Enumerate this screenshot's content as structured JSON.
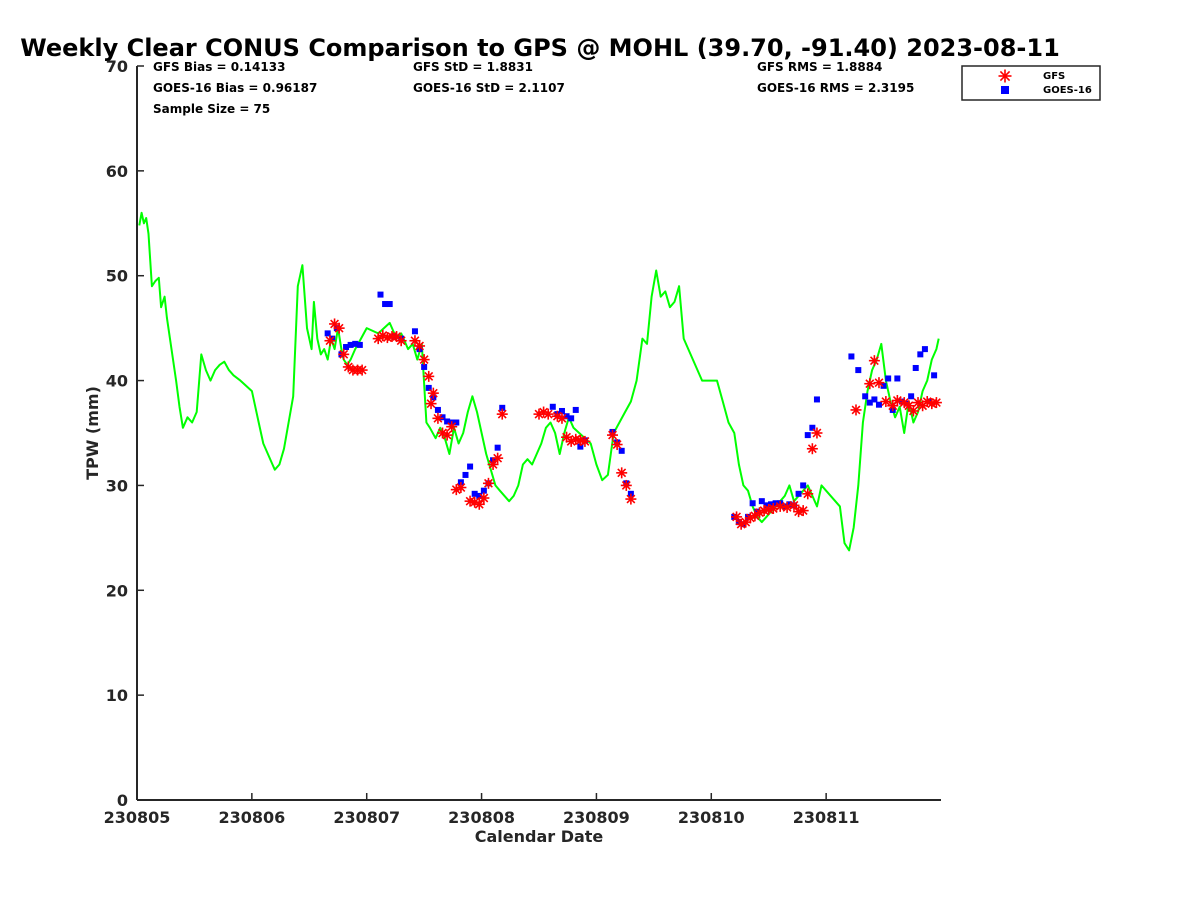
{
  "chart_data": {
    "type": "scatter",
    "title": "Weekly Clear CONUS Comparison to GPS @ MOHL (39.70, -91.40) 2023-08-11",
    "xlabel": "Calendar Date",
    "ylabel": "TPW (mm)",
    "xlim": [
      0.0,
      7.0
    ],
    "ylim": [
      0,
      70
    ],
    "x_tick_values": [
      0,
      1,
      2,
      3,
      4,
      5,
      6
    ],
    "x_tick_labels": [
      "230805",
      "230806",
      "230807",
      "230808",
      "230809",
      "230810",
      "230811"
    ],
    "y_ticks": [
      0,
      10,
      20,
      30,
      40,
      50,
      60,
      70
    ],
    "grid": false,
    "legend_position": "top-right, outside plot",
    "stats": {
      "gfs_bias": "GFS Bias = 0.14133",
      "goes_bias": "GOES-16 Bias = 0.96187",
      "sample_size": "Sample Size = 75",
      "gfs_std": "GFS StD = 1.8831",
      "goes_std": "GOES-16 StD = 2.1107",
      "gfs_rms": "GFS RMS = 1.8884",
      "goes_rms": "GOES-16 RMS = 2.3195"
    },
    "series": [
      {
        "name": "GPS",
        "type": "line",
        "color": "#00ff00",
        "in_legend": false,
        "x": [
          0.02,
          0.04,
          0.06,
          0.08,
          0.1,
          0.13,
          0.16,
          0.19,
          0.21,
          0.24,
          0.26,
          0.3,
          0.34,
          0.37,
          0.4,
          0.44,
          0.48,
          0.52,
          0.56,
          0.6,
          0.64,
          0.68,
          0.72,
          0.76,
          0.8,
          0.84,
          0.9,
          1.0,
          1.06,
          1.1,
          1.14,
          1.18,
          1.2,
          1.24,
          1.28,
          1.32,
          1.36,
          1.4,
          1.44,
          1.48,
          1.5,
          1.52,
          1.54,
          1.57,
          1.6,
          1.63,
          1.66,
          1.69,
          1.72,
          1.75,
          1.78,
          1.8,
          1.83,
          1.86,
          1.9,
          1.95,
          2.0,
          2.1,
          2.2,
          2.26,
          2.3,
          2.36,
          2.4,
          2.44,
          2.48,
          2.52,
          2.55,
          2.6,
          2.64,
          2.68,
          2.72,
          2.76,
          2.8,
          2.84,
          2.88,
          2.92,
          2.96,
          3.0,
          3.04,
          3.08,
          3.12,
          3.16,
          3.2,
          3.24,
          3.28,
          3.32,
          3.36,
          3.4,
          3.44,
          3.48,
          3.52,
          3.56,
          3.6,
          3.64,
          3.68,
          3.72,
          3.76,
          3.8,
          3.85,
          3.9,
          3.95,
          4.0,
          4.05,
          4.1,
          4.15,
          4.2,
          4.25,
          4.3,
          4.35,
          4.4,
          4.44,
          4.48,
          4.52,
          4.56,
          4.6,
          4.64,
          4.68,
          4.72,
          4.76,
          4.8,
          4.84,
          4.88,
          4.92,
          4.96,
          5.0,
          5.05,
          5.1,
          5.15,
          5.2,
          5.24,
          5.28,
          5.32,
          5.36,
          5.4,
          5.44,
          5.48,
          5.52,
          5.56,
          5.6,
          5.64,
          5.68,
          5.72,
          5.76,
          5.8,
          5.84,
          5.88,
          5.92,
          5.96,
          6.0,
          6.04,
          6.08,
          6.12,
          6.16,
          6.2,
          6.24,
          6.28,
          6.32,
          6.36,
          6.4,
          6.44,
          6.48,
          6.52,
          6.56,
          6.6,
          6.64,
          6.68,
          6.72,
          6.76,
          6.8,
          6.84,
          6.88,
          6.92,
          6.96,
          6.98
        ],
        "y": [
          54.8,
          56.0,
          55.0,
          55.5,
          54.0,
          49.0,
          49.5,
          49.8,
          47.0,
          48.0,
          46.0,
          43.0,
          40.0,
          37.5,
          35.5,
          36.5,
          36.0,
          37.0,
          42.5,
          41.0,
          40.0,
          41.0,
          41.5,
          41.8,
          41.0,
          40.5,
          40.0,
          39.0,
          36.0,
          34.0,
          33.0,
          32.0,
          31.5,
          32.0,
          33.5,
          36.0,
          38.5,
          49.0,
          51.0,
          45.0,
          44.0,
          43.0,
          47.5,
          44.0,
          42.5,
          43.0,
          42.0,
          44.0,
          43.0,
          45.0,
          43.0,
          42.0,
          41.5,
          42.0,
          43.0,
          44.0,
          45.0,
          44.5,
          45.5,
          44.0,
          44.5,
          43.0,
          43.5,
          42.0,
          43.5,
          36.0,
          35.5,
          34.5,
          35.5,
          34.5,
          33.0,
          35.5,
          34.0,
          35.0,
          37.0,
          38.5,
          37.0,
          35.0,
          33.0,
          31.5,
          30.0,
          29.5,
          29.0,
          28.5,
          29.0,
          30.0,
          32.0,
          32.5,
          32.0,
          33.0,
          34.0,
          35.5,
          36.0,
          35.0,
          33.0,
          35.0,
          36.5,
          35.5,
          35.0,
          34.5,
          34.0,
          32.0,
          30.5,
          31.0,
          35.0,
          36.0,
          37.0,
          38.0,
          40.0,
          44.0,
          43.5,
          48.0,
          50.5,
          48.0,
          48.5,
          47.0,
          47.5,
          49.0,
          44.0,
          43.0,
          42.0,
          41.0,
          40.0,
          40.0,
          40.0,
          40.0,
          38.0,
          36.0,
          35.0,
          32.0,
          30.0,
          29.5,
          28.0,
          27.0,
          26.5,
          27.0,
          27.5,
          28.0,
          28.5,
          29.0,
          30.0,
          28.5,
          29.0,
          29.5,
          30.0,
          29.0,
          28.0,
          30.0,
          29.5,
          29.0,
          28.5,
          28.0,
          24.5,
          23.8,
          26.0,
          30.0,
          36.0,
          39.0,
          41.0,
          42.0,
          43.5,
          40.0,
          38.0,
          36.5,
          37.5,
          35.0,
          38.0,
          36.0,
          37.0,
          39.0,
          40.0,
          42.0,
          43.0,
          44.0
        ]
      },
      {
        "name": "GFS",
        "type": "scatter",
        "marker": "asterisk",
        "color": "#ff0000",
        "in_legend": true,
        "x": [
          1.68,
          1.72,
          1.76,
          1.8,
          1.84,
          1.88,
          1.92,
          1.96,
          2.1,
          2.14,
          2.18,
          2.22,
          2.26,
          2.3,
          2.42,
          2.46,
          2.5,
          2.54,
          2.56,
          2.58,
          2.62,
          2.66,
          2.7,
          2.74,
          2.78,
          2.82,
          2.9,
          2.94,
          2.98,
          3.02,
          3.06,
          3.1,
          3.14,
          3.18,
          3.5,
          3.54,
          3.58,
          3.66,
          3.7,
          3.74,
          3.78,
          3.82,
          3.86,
          3.9,
          4.14,
          4.18,
          4.22,
          4.26,
          4.3,
          5.22,
          5.26,
          5.3,
          5.34,
          5.38,
          5.42,
          5.46,
          5.5,
          5.54,
          5.6,
          5.66,
          5.72,
          5.76,
          5.8,
          5.84,
          5.88,
          5.92,
          6.26,
          6.38,
          6.42,
          6.46,
          6.52,
          6.58,
          6.62,
          6.68,
          6.72,
          6.76,
          6.8,
          6.84,
          6.88,
          6.92,
          6.96
        ],
        "y": [
          43.8,
          45.4,
          45.0,
          42.5,
          41.3,
          41.0,
          41.0,
          41.0,
          44.0,
          44.3,
          44.1,
          44.2,
          44.2,
          43.8,
          43.8,
          43.3,
          42.0,
          40.4,
          37.8,
          38.8,
          36.4,
          35.0,
          34.8,
          35.6,
          29.6,
          29.8,
          28.5,
          28.4,
          28.2,
          28.8,
          30.2,
          32.0,
          32.6,
          36.8,
          36.8,
          37.0,
          36.8,
          36.6,
          36.4,
          34.6,
          34.2,
          34.4,
          34.3,
          34.2,
          34.8,
          33.9,
          31.2,
          30.0,
          28.7,
          27.0,
          26.3,
          26.5,
          26.9,
          27.1,
          27.4,
          27.6,
          27.7,
          27.8,
          28.0,
          27.9,
          28.1,
          27.5,
          27.6,
          29.2,
          33.5,
          35.0,
          37.2,
          39.7,
          41.9,
          39.8,
          38.0,
          37.6,
          38.1,
          37.9,
          37.6,
          37.1,
          37.9,
          37.6,
          38.0,
          37.8,
          37.9
        ]
      },
      {
        "name": "GOES-16",
        "type": "scatter",
        "marker": "square",
        "color": "#0000ff",
        "in_legend": true,
        "x": [
          1.66,
          1.7,
          1.74,
          1.78,
          1.82,
          1.86,
          1.9,
          1.94,
          2.12,
          2.16,
          2.2,
          2.24,
          2.3,
          2.42,
          2.46,
          2.5,
          2.54,
          2.58,
          2.62,
          2.66,
          2.7,
          2.74,
          2.78,
          2.82,
          2.86,
          2.9,
          2.94,
          2.98,
          3.02,
          3.06,
          3.1,
          3.14,
          3.18,
          3.62,
          3.66,
          3.7,
          3.74,
          3.78,
          3.82,
          3.86,
          3.9,
          4.14,
          4.18,
          4.22,
          4.26,
          4.3,
          5.2,
          5.24,
          5.28,
          5.32,
          5.36,
          5.4,
          5.44,
          5.48,
          5.52,
          5.56,
          5.6,
          5.64,
          5.68,
          5.72,
          5.76,
          5.8,
          5.84,
          5.88,
          5.92,
          6.22,
          6.28,
          6.34,
          6.38,
          6.42,
          6.46,
          6.5,
          6.54,
          6.58,
          6.62,
          6.66,
          6.7,
          6.74,
          6.78,
          6.82,
          6.86,
          6.9,
          6.94
        ],
        "y": [
          44.5,
          44.0,
          45.0,
          42.5,
          43.2,
          43.4,
          43.5,
          43.4,
          48.2,
          47.3,
          47.3,
          44.2,
          44.0,
          44.7,
          43.0,
          41.3,
          39.3,
          38.4,
          37.2,
          36.5,
          36.1,
          36.0,
          36.0,
          30.3,
          31.0,
          31.8,
          29.2,
          29.0,
          29.5,
          30.2,
          32.4,
          33.6,
          37.4,
          37.5,
          36.8,
          37.1,
          36.6,
          36.4,
          37.2,
          33.7,
          34.3,
          35.1,
          34.1,
          33.3,
          30.2,
          29.2,
          27.0,
          26.5,
          26.3,
          27.0,
          28.3,
          27.5,
          28.5,
          28.1,
          28.2,
          28.3,
          28.3,
          28.0,
          28.2,
          28.1,
          29.2,
          30.0,
          34.8,
          35.5,
          38.2,
          42.3,
          41.0,
          38.5,
          37.9,
          38.2,
          37.7,
          39.5,
          40.2,
          37.2,
          40.2,
          38.0,
          37.8,
          38.5,
          41.2,
          42.5,
          43.0,
          38.0,
          40.5
        ]
      }
    ]
  }
}
